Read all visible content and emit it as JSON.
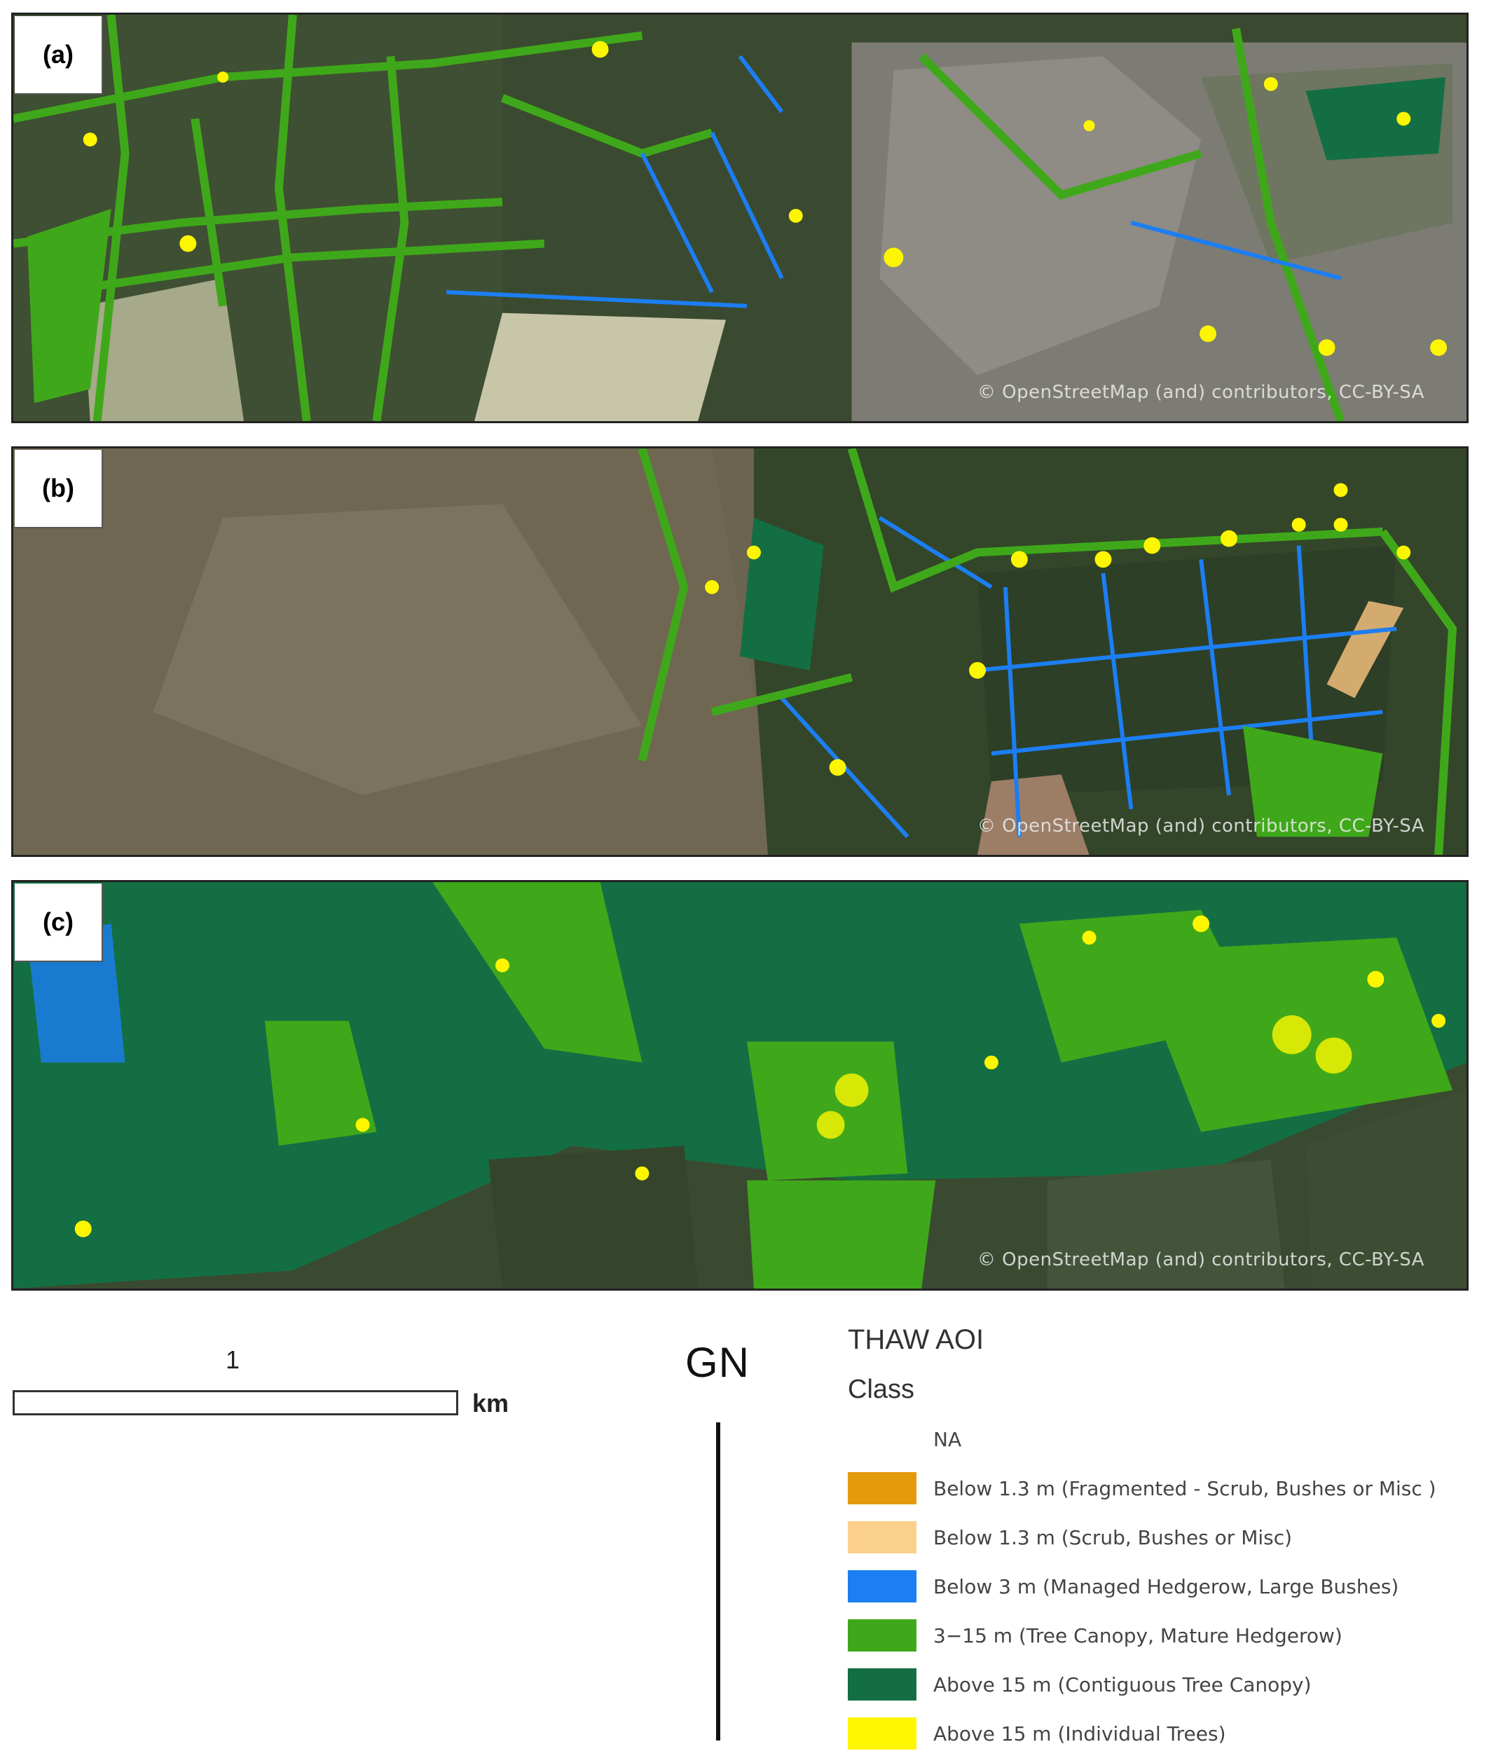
{
  "panels": [
    {
      "label": "(a)",
      "attribution": "© OpenStreetMap (and) contributors, CC-BY-SA"
    },
    {
      "label": "(b)",
      "attribution": "© OpenStreetMap (and) contributors, CC-BY-SA"
    },
    {
      "label": "(c)",
      "attribution": "© OpenStreetMap (and) contributors, CC-BY-SA"
    }
  ],
  "scale_bar": {
    "value": "1",
    "unit": "km"
  },
  "north_arrow": {
    "label": "GN"
  },
  "legend": {
    "title": "THAW AOI",
    "subtitle": "Class",
    "items": [
      {
        "label": "NA",
        "color": "#ffffff"
      },
      {
        "label": "Below 1.3 m (Fragmented - Scrub, Bushes or Misc )",
        "color": "#e39a0b"
      },
      {
        "label": "Below 1.3 m (Scrub, Bushes or Misc)",
        "color": "#fbcf8c"
      },
      {
        "label": "Below 3 m (Managed Hedgerow, Large Bushes)",
        "color": "#1c7ef2"
      },
      {
        "label": "3−15 m (Tree Canopy, Mature Hedgerow)",
        "color": "#3fa81a"
      },
      {
        "label": "Above 15 m (Contiguous Tree Canopy)",
        "color": "#136f43"
      },
      {
        "label": "Above 15 m (Individual Trees)",
        "color": "#fef601"
      }
    ]
  },
  "colors": {
    "field_dark": "#34452c",
    "field_mid": "#4d5c3a",
    "moorland": "#6a6450",
    "urban": "#8a8880"
  }
}
